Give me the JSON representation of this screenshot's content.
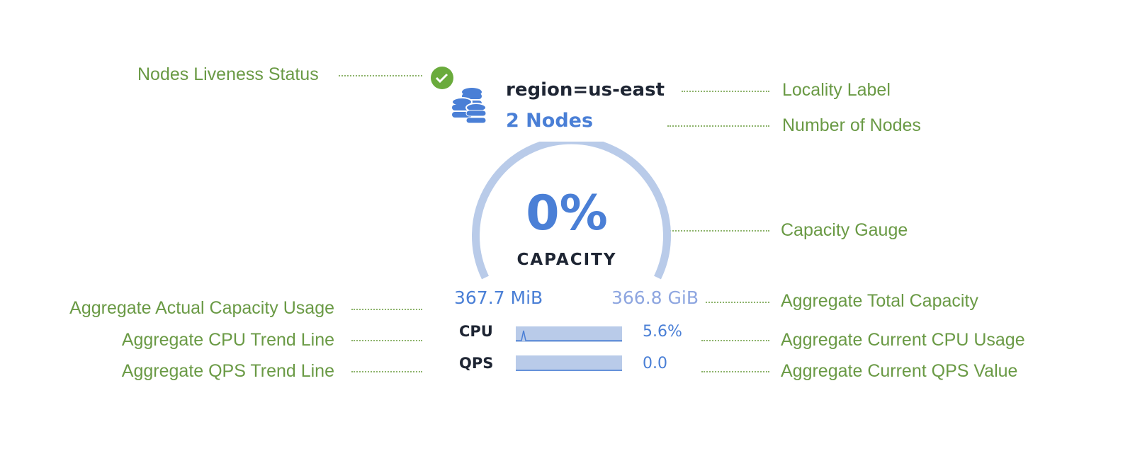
{
  "widget": {
    "liveness_status": "live",
    "locality": "region=us-east",
    "nodes": "2 Nodes",
    "capacity_percent": "0%",
    "capacity_value": 0,
    "capacity_label": "CAPACITY",
    "used": "367.7 MiB",
    "total": "366.8 GiB",
    "cpu_label": "CPU",
    "cpu_value": "5.6%",
    "qps_label": "QPS",
    "qps_value": "0.0"
  },
  "annotations": {
    "liveness": "Nodes Liveness Status",
    "locality": "Locality Label",
    "nodes": "Number of Nodes",
    "gauge": "Capacity Gauge",
    "used": "Aggregate Actual Capacity Usage",
    "total": "Aggregate Total Capacity",
    "cpu_trend": "Aggregate CPU Trend Line",
    "cpu_current": "Aggregate Current CPU Usage",
    "qps_trend": "Aggregate QPS Trend Line",
    "qps_current": "Aggregate Current QPS Value"
  },
  "colors": {
    "annotation": "#6a9a45",
    "accent": "#4a7fd6",
    "gauge": "#b9cbe9",
    "success": "#6aab3c"
  }
}
